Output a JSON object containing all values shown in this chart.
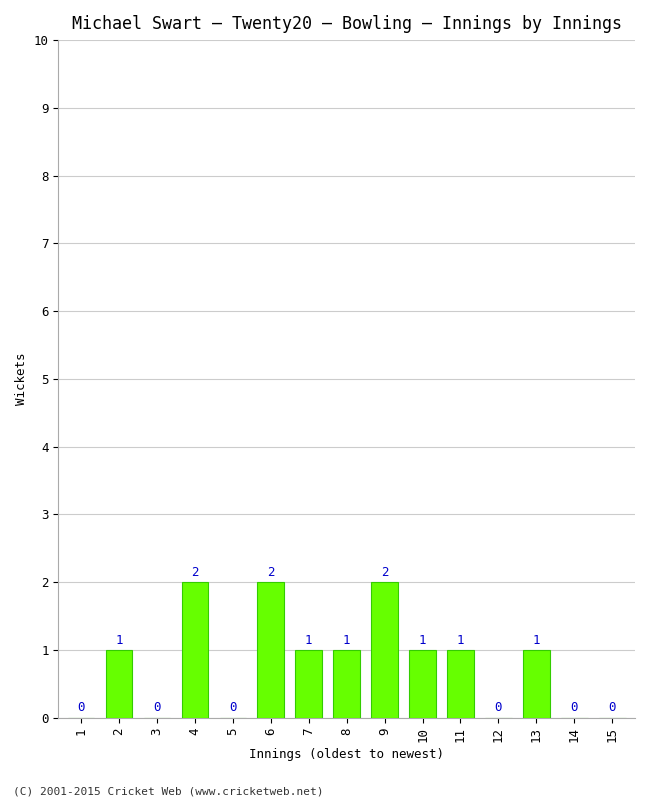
{
  "title": "Michael Swart – Twenty20 – Bowling – Innings by Innings",
  "xlabel": "Innings (oldest to newest)",
  "ylabel": "Wickets",
  "categories": [
    1,
    2,
    3,
    4,
    5,
    6,
    7,
    8,
    9,
    10,
    11,
    12,
    13,
    14,
    15
  ],
  "values": [
    0,
    1,
    0,
    2,
    0,
    2,
    1,
    1,
    2,
    1,
    1,
    0,
    1,
    0,
    0
  ],
  "bar_color": "#66ff00",
  "bar_edge_color": "#33cc00",
  "label_color": "#0000cc",
  "ylim": [
    0,
    10
  ],
  "yticks": [
    0,
    1,
    2,
    3,
    4,
    5,
    6,
    7,
    8,
    9,
    10
  ],
  "background_color": "#ffffff",
  "plot_bg_color": "#ffffff",
  "grid_color": "#cccccc",
  "title_fontsize": 12,
  "label_fontsize": 9,
  "tick_fontsize": 9,
  "annotation_fontsize": 9,
  "footer": "(C) 2001-2015 Cricket Web (www.cricketweb.net)"
}
